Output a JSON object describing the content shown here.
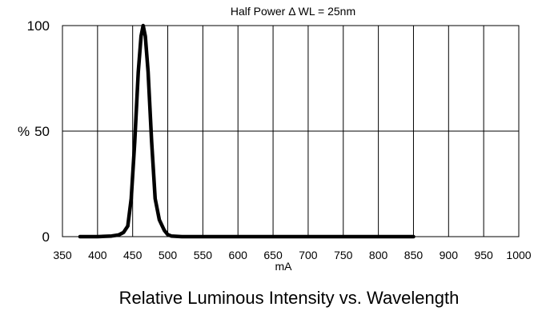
{
  "chart_data": {
    "type": "line",
    "title": "Half Power Δ WL = 25nm",
    "caption": "Relative Luminous Intensity vs. Wavelength",
    "xlabel": "mA",
    "ylabel": "%",
    "xlim": [
      350,
      1000
    ],
    "ylim": [
      0,
      100
    ],
    "x_ticks": [
      "350",
      "400",
      "450",
      "500",
      "550",
      "600",
      "650",
      "700",
      "750",
      "800",
      "850",
      "900",
      "950",
      "1000"
    ],
    "y_ticks": [
      "0",
      "50",
      "100"
    ],
    "grid": true,
    "series": [
      {
        "x": [
          375,
          400,
          420,
          430,
          437,
          443,
          448,
          453,
          458,
          462,
          465,
          468,
          472,
          477,
          482,
          488,
          495,
          500,
          505,
          520,
          600,
          700,
          800,
          850
        ],
        "y": [
          0,
          0,
          0.3,
          0.8,
          2,
          5,
          18,
          45,
          78,
          95,
          100,
          95,
          78,
          45,
          18,
          8,
          3,
          1,
          0.3,
          0,
          0,
          0,
          0,
          0
        ]
      }
    ],
    "line_color": "#000000",
    "grid_color": "#000000"
  }
}
